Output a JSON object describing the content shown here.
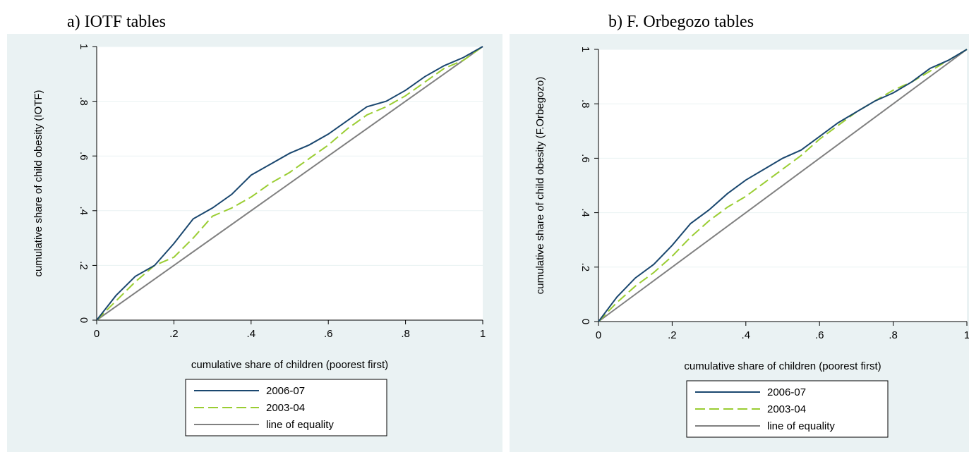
{
  "chart_data": [
    {
      "type": "line",
      "title": "a) IOTF tables",
      "xlabel": "cumulative share of children (poorest first)",
      "ylabel": "cumulative share of child obesity (IOTF)",
      "xlim": [
        0,
        1
      ],
      "ylim": [
        0,
        1
      ],
      "xticks": [
        0,
        {
          "value": 0.2,
          "label": ".2"
        },
        {
          "value": 0.4,
          "label": ".4"
        },
        {
          "value": 0.6,
          "label": ".6"
        },
        {
          "value": 0.8,
          "label": ".8"
        },
        1
      ],
      "yticks": [
        0,
        {
          "value": 0.2,
          "label": ".2"
        },
        {
          "value": 0.4,
          "label": ".4"
        },
        {
          "value": 0.6,
          "label": ".6"
        },
        {
          "value": 0.8,
          "label": ".8"
        },
        1
      ],
      "grid": true,
      "legend": "bottom",
      "series": [
        {
          "name": "2006-07",
          "color": "#1a476f",
          "dashed": false,
          "x": [
            0,
            0.05,
            0.1,
            0.15,
            0.2,
            0.25,
            0.3,
            0.35,
            0.4,
            0.45,
            0.5,
            0.55,
            0.6,
            0.65,
            0.7,
            0.75,
            0.8,
            0.85,
            0.9,
            0.95,
            1
          ],
          "values": [
            0,
            0.09,
            0.16,
            0.2,
            0.28,
            0.37,
            0.41,
            0.46,
            0.53,
            0.57,
            0.61,
            0.64,
            0.68,
            0.73,
            0.78,
            0.8,
            0.84,
            0.89,
            0.93,
            0.96,
            1
          ]
        },
        {
          "name": "2003-04",
          "color": "#9acd32",
          "dashed": true,
          "x": [
            0,
            0.05,
            0.1,
            0.15,
            0.2,
            0.25,
            0.3,
            0.35,
            0.4,
            0.45,
            0.5,
            0.55,
            0.6,
            0.65,
            0.7,
            0.75,
            0.8,
            0.85,
            0.9,
            0.95,
            1
          ],
          "values": [
            0,
            0.07,
            0.14,
            0.2,
            0.23,
            0.3,
            0.38,
            0.41,
            0.45,
            0.5,
            0.54,
            0.59,
            0.64,
            0.7,
            0.75,
            0.78,
            0.82,
            0.87,
            0.92,
            0.95,
            1
          ]
        },
        {
          "name": "line of equality",
          "color": "#808080",
          "dashed": false,
          "x": [
            0,
            1
          ],
          "values": [
            0,
            1
          ]
        }
      ]
    },
    {
      "type": "line",
      "title": "b) F. Orbegozo tables",
      "xlabel": "cumulative share of children (poorest first)",
      "ylabel": "cumulative share of child obesity (F.Orbegozo)",
      "xlim": [
        0,
        1
      ],
      "ylim": [
        0,
        1
      ],
      "xticks": [
        0,
        {
          "value": 0.2,
          "label": ".2"
        },
        {
          "value": 0.4,
          "label": ".4"
        },
        {
          "value": 0.6,
          "label": ".6"
        },
        {
          "value": 0.8,
          "label": ".8"
        },
        1
      ],
      "yticks": [
        0,
        {
          "value": 0.2,
          "label": ".2"
        },
        {
          "value": 0.4,
          "label": ".4"
        },
        {
          "value": 0.6,
          "label": ".6"
        },
        {
          "value": 0.8,
          "label": ".8"
        },
        1
      ],
      "grid": true,
      "legend": "bottom",
      "series": [
        {
          "name": "2006-07",
          "color": "#1a476f",
          "dashed": false,
          "x": [
            0,
            0.05,
            0.1,
            0.15,
            0.2,
            0.25,
            0.3,
            0.35,
            0.4,
            0.45,
            0.5,
            0.55,
            0.6,
            0.65,
            0.7,
            0.75,
            0.8,
            0.85,
            0.9,
            0.95,
            1
          ],
          "values": [
            0,
            0.09,
            0.16,
            0.21,
            0.28,
            0.36,
            0.41,
            0.47,
            0.52,
            0.56,
            0.6,
            0.63,
            0.68,
            0.73,
            0.77,
            0.81,
            0.84,
            0.88,
            0.93,
            0.96,
            1
          ]
        },
        {
          "name": "2003-04",
          "color": "#9acd32",
          "dashed": true,
          "x": [
            0,
            0.05,
            0.1,
            0.15,
            0.2,
            0.25,
            0.3,
            0.35,
            0.4,
            0.45,
            0.5,
            0.55,
            0.6,
            0.65,
            0.7,
            0.75,
            0.8,
            0.85,
            0.9,
            0.95,
            1
          ],
          "values": [
            0,
            0.07,
            0.13,
            0.18,
            0.24,
            0.31,
            0.37,
            0.42,
            0.46,
            0.51,
            0.56,
            0.61,
            0.67,
            0.72,
            0.77,
            0.81,
            0.85,
            0.88,
            0.92,
            0.96,
            1
          ]
        },
        {
          "name": "line of equality",
          "color": "#808080",
          "dashed": false,
          "x": [
            0,
            1
          ],
          "values": [
            0,
            1
          ]
        }
      ]
    }
  ]
}
